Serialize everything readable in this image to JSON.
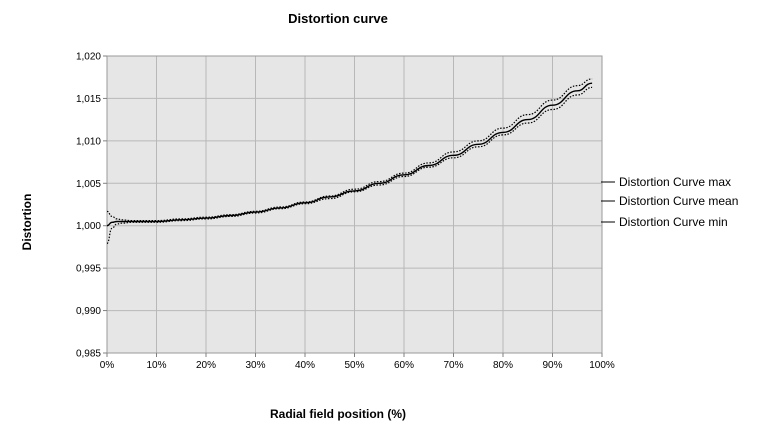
{
  "chart_data": {
    "type": "line",
    "title": "Distortion curve",
    "xlabel": "Radial field position (%)",
    "ylabel": "Distortion",
    "x_ticks": [
      "0%",
      "10%",
      "20%",
      "30%",
      "40%",
      "50%",
      "60%",
      "70%",
      "80%",
      "90%",
      "100%"
    ],
    "y_ticks": [
      "0,985",
      "0,990",
      "0,995",
      "1,000",
      "1,005",
      "1,010",
      "1,015",
      "1,020"
    ],
    "xlim": [
      0,
      100
    ],
    "ylim": [
      0.985,
      1.02
    ],
    "grid": true,
    "legend_position": "right",
    "x": [
      0,
      1,
      2,
      3,
      5,
      10,
      15,
      20,
      25,
      30,
      35,
      40,
      45,
      50,
      55,
      60,
      65,
      70,
      75,
      80,
      85,
      90,
      95,
      98
    ],
    "series": [
      {
        "name": "Distortion Curve max",
        "style": "dotted",
        "values": [
          1.0017,
          1.0011,
          1.0008,
          1.0007,
          1.0006,
          1.0006,
          1.0008,
          1.001,
          1.0013,
          1.0017,
          1.0022,
          1.0028,
          1.0035,
          1.0043,
          1.0052,
          1.0062,
          1.0074,
          1.0087,
          1.01,
          1.0115,
          1.0131,
          1.0148,
          1.0165,
          1.0173
        ]
      },
      {
        "name": "Distortion Curve mean",
        "style": "solid",
        "values": [
          1.0,
          1.0004,
          1.0005,
          1.0005,
          1.0005,
          1.0005,
          1.0007,
          1.0009,
          1.0012,
          1.0016,
          1.0021,
          1.0027,
          1.0034,
          1.0041,
          1.005,
          1.006,
          1.0071,
          1.0083,
          1.0096,
          1.011,
          1.0125,
          1.0142,
          1.0159,
          1.0168
        ]
      },
      {
        "name": "Distortion Curve min",
        "style": "dotted",
        "values": [
          0.9979,
          0.9997,
          1.0002,
          1.0003,
          1.0004,
          1.0004,
          1.0006,
          1.0008,
          1.0011,
          1.0015,
          1.002,
          1.0026,
          1.0032,
          1.004,
          1.0048,
          1.0058,
          1.0069,
          1.008,
          1.0093,
          1.0107,
          1.0121,
          1.0137,
          1.0154,
          1.0163
        ]
      }
    ],
    "colors": {
      "plot_background": "#e6e6e6",
      "gridline": "#b8b8b8",
      "line": "#000000"
    }
  }
}
